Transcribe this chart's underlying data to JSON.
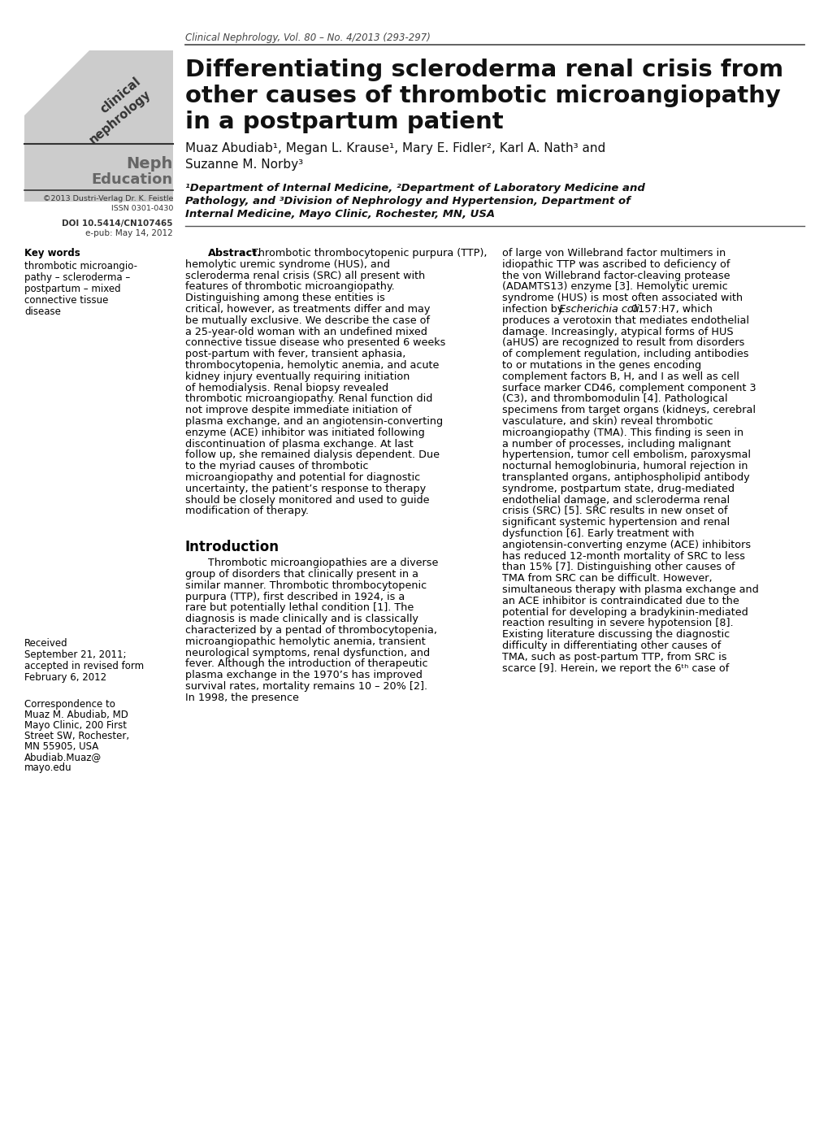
{
  "journal_header": "Clinical Nephrology, Vol. 80 – No. 4/2013 (293-297)",
  "title_line1": "Differentiating scleroderma renal crisis from",
  "title_line2": "other causes of thrombotic microangiopathy",
  "title_line3": "in a postpartum patient",
  "author_line1": "Muaz Abudiab¹, Megan L. Krause¹, Mary E. Fidler², Karl A. Nath³ and",
  "author_line2": "Suzanne M. Norby³",
  "affil1": "¹Department of Internal Medicine, ²Department of Laboratory Medicine and",
  "affil2": "Pathology, and ³Division of Nephrology and Hypertension, Department of",
  "affil3": "Internal Medicine, Mayo Clinic, Rochester, MN, USA",
  "copyright_line1": "©2013 Dustri-Verlag Dr. K. Feistle",
  "copyright_line2": "ISSN 0301-0430",
  "doi_line1": "DOI 10.5414/CN107465",
  "doi_line2": "e-pub: May 14, 2012",
  "received_lines": [
    "Received",
    "September 21, 2011;",
    "accepted in revised form",
    "February 6, 2012"
  ],
  "correspondence_lines": [
    "Correspondence to",
    "Muaz M. Abudiab, MD",
    "Mayo Clinic, 200 First",
    "Street SW, Rochester,",
    "MN 55905, USA",
    "Abudiab.Muaz@",
    "mayo.edu"
  ],
  "keywords_title": "Key words",
  "keywords_lines": [
    "thrombotic microangio-",
    "pathy – scleroderma –",
    "postpartum – mixed",
    "connective tissue",
    "disease"
  ],
  "abstract_label": "Abstract.",
  "abstract_body": "Thrombotic thrombocytopenic purpura (TTP), hemolytic uremic syndrome (HUS), and scleroderma renal crisis (SRC) all present with features of thrombotic microangiopathy. Distinguishing among these entities is critical, however, as treatments differ and may be mutually exclusive. We describe the case of a 25-year-old woman with an undefined mixed connective tissue disease who presented 6 weeks post-partum with fever, transient aphasia, thrombocytopenia, hemolytic anemia, and acute kidney injury eventually requiring initiation of hemodialysis. Renal biopsy revealed thrombotic microangiopathy. Renal function did not improve despite immediate initiation of plasma exchange, and an angiotensin-converting enzyme (ACE) inhibitor was initiated following discontinuation of plasma exchange. At last follow up, she remained dialysis dependent. Due to the myriad causes of thrombotic microangiopathy and potential for diagnostic uncertainty, the patient’s response to therapy should be closely monitored and used to guide modification of therapy.",
  "right_col_para": "of large von Willebrand factor multimers in idiopathic TTP was ascribed to deficiency of the von Willebrand factor-cleaving protease (ADAMTS13) enzyme [3]. Hemolytic uremic syndrome (HUS) is most often associated with infection by Escherichia coli 0157:H7, which produces a verotoxin that mediates endothelial damage. Increasingly, atypical forms of HUS (aHUS) are recognized to result from disorders of complement regulation, including antibodies to or mutations in the genes encoding complement factors B, H, and I as well as cell surface marker CD46, complement component 3 (C3), and thrombomodulin [4]. Pathological specimens from target organs (kidneys, cerebral vasculature, and skin) reveal thrombotic microangiopathy (TMA). This finding is seen in a number of processes, including malignant hypertension, tumor cell embolism, paroxysmal nocturnal hemoglobinuria, humoral rejection in transplanted organs, antiphospholipid antibody syndrome, postpartum state, drug-mediated endothelial damage, and scleroderma renal crisis (SRC) [5]. SRC results in new onset of significant systemic hypertension and renal dysfunction [6]. Early treatment with angiotensin-converting enzyme (ACE) inhibitors has reduced 12-month mortality of SRC to less than 15% [7]. Distinguishing other causes of TMA from SRC can be difficult. However, simultaneous therapy with plasma exchange and an ACE inhibitor is contraindicated due to the potential for developing a bradykinin-mediated reaction resulting in severe hypotension [8]. Existing literature discussing the diagnostic difficulty in differentiating other causes of TMA, such as post-partum TTP, from SRC is scarce [9]. Herein, we report the 6ᵗʰ case of",
  "intro_title": "Introduction",
  "intro_para": "Thrombotic microangiopathies are a diverse group of disorders that clinically present in a similar manner. Thrombotic thrombocytopenic purpura (TTP), first described in 1924, is a rare but potentially lethal condition [1]. The diagnosis is made clinically and is classically characterized by a pentad of thrombocytopenia, microangiopathic hemolytic anemia, transient neurological symptoms, renal dysfunction, and fever. Although the introduction of therapeutic plasma exchange in the 1970’s has improved survival rates, mortality remains 10 – 20% [2]. In 1998, the presence",
  "bg": "#ffffff"
}
